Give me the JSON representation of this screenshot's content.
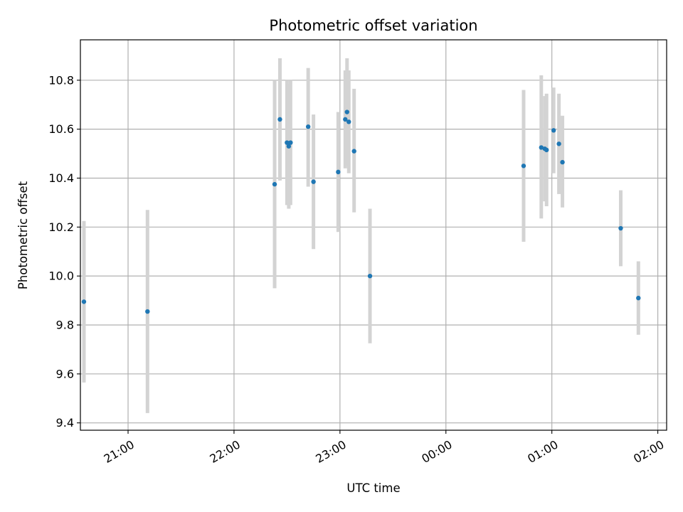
{
  "chart_data": {
    "type": "scatter",
    "title": "Photometric offset variation",
    "xlabel": "UTC time",
    "ylabel": "Photometric offset",
    "xlim": [
      "20:33",
      "02:05"
    ],
    "ylim": [
      9.37,
      10.965
    ],
    "grid": true,
    "x_ticks": [
      "21:00",
      "22:00",
      "23:00",
      "00:00",
      "01:00",
      "02:00"
    ],
    "y_ticks": [
      "9.4",
      "9.6",
      "9.8",
      "10.0",
      "10.2",
      "10.4",
      "10.6",
      "10.8"
    ],
    "colors": {
      "point": "#1f77b4",
      "errorbar": "#d3d3d3",
      "grid": "#b0b0b0"
    },
    "points": [
      {
        "x": "20:35",
        "y": 9.895,
        "ylow": 9.565,
        "yhigh": 10.225
      },
      {
        "x": "21:11",
        "y": 9.855,
        "ylow": 9.44,
        "yhigh": 10.27
      },
      {
        "x": "22:23",
        "y": 10.375,
        "ylow": 9.95,
        "yhigh": 10.8
      },
      {
        "x": "22:26",
        "y": 10.64,
        "ylow": 10.39,
        "yhigh": 10.89
      },
      {
        "x": "22:30",
        "y": 10.545,
        "ylow": 10.29,
        "yhigh": 10.8
      },
      {
        "x": "22:31",
        "y": 10.53,
        "ylow": 10.275,
        "yhigh": 10.785
      },
      {
        "x": "22:32",
        "y": 10.545,
        "ylow": 10.29,
        "yhigh": 10.8
      },
      {
        "x": "22:42",
        "y": 10.61,
        "ylow": 10.365,
        "yhigh": 10.85
      },
      {
        "x": "22:45",
        "y": 10.385,
        "ylow": 10.11,
        "yhigh": 10.66
      },
      {
        "x": "22:59",
        "y": 10.425,
        "ylow": 10.18,
        "yhigh": 10.67
      },
      {
        "x": "23:03",
        "y": 10.64,
        "ylow": 10.44,
        "yhigh": 10.84
      },
      {
        "x": "23:04",
        "y": 10.67,
        "ylow": 10.45,
        "yhigh": 10.89
      },
      {
        "x": "23:05",
        "y": 10.63,
        "ylow": 10.42,
        "yhigh": 10.84
      },
      {
        "x": "23:08",
        "y": 10.51,
        "ylow": 10.26,
        "yhigh": 10.765
      },
      {
        "x": "23:17",
        "y": 10.0,
        "ylow": 9.725,
        "yhigh": 10.275
      },
      {
        "x": "00:44",
        "y": 10.45,
        "ylow": 10.14,
        "yhigh": 10.76
      },
      {
        "x": "00:54",
        "y": 10.525,
        "ylow": 10.235,
        "yhigh": 10.82
      },
      {
        "x": "00:56",
        "y": 10.52,
        "ylow": 10.305,
        "yhigh": 10.735
      },
      {
        "x": "00:57",
        "y": 10.515,
        "ylow": 10.285,
        "yhigh": 10.745
      },
      {
        "x": "01:01",
        "y": 10.595,
        "ylow": 10.42,
        "yhigh": 10.77
      },
      {
        "x": "01:04",
        "y": 10.54,
        "ylow": 10.335,
        "yhigh": 10.745
      },
      {
        "x": "01:06",
        "y": 10.465,
        "ylow": 10.28,
        "yhigh": 10.655
      },
      {
        "x": "01:39",
        "y": 10.195,
        "ylow": 10.04,
        "yhigh": 10.35
      },
      {
        "x": "01:49",
        "y": 9.91,
        "ylow": 9.76,
        "yhigh": 10.06
      }
    ]
  }
}
